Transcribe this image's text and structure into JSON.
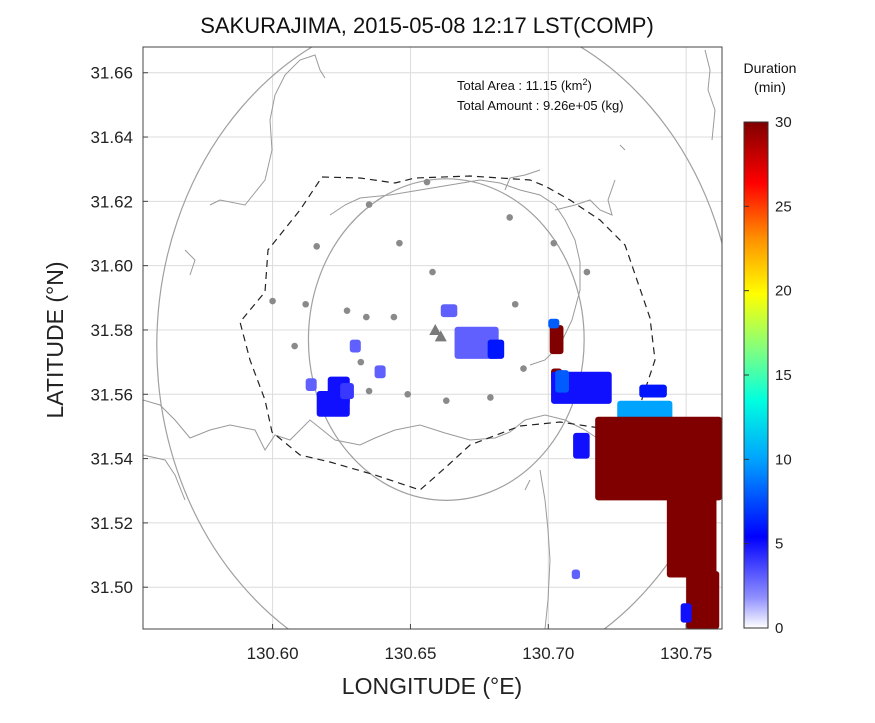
{
  "chart_data": {
    "type": "heatmap",
    "title": "SAKURAJIMA, 2015-05-08 12:17 LST(COMP)",
    "xlabel": "LONGITUDE (°E)",
    "ylabel": "LATITUDE (°N)",
    "xlim": [
      130.553,
      130.763
    ],
    "ylim": [
      31.487,
      31.668
    ],
    "xticks": [
      "130.60",
      "130.65",
      "130.70",
      "130.75"
    ],
    "yticks": [
      "31.50",
      "31.52",
      "31.54",
      "31.56",
      "31.58",
      "31.60",
      "31.62",
      "31.64",
      "31.66"
    ],
    "grid": true,
    "annotations": {
      "area_label": "Total Area   : 11.15 (km",
      "area_sup": "2",
      "area_close": ")",
      "amount_label": "Total Amount : 9.26e+05 (kg)"
    },
    "colorbar": {
      "title_line1": "Duration",
      "title_line2": "(min)",
      "min": 0,
      "max": 30,
      "ticks": [
        "0",
        "5",
        "10",
        "15",
        "20",
        "25",
        "30"
      ]
    },
    "vent": {
      "lon": 130.659,
      "lat": 31.58
    },
    "vent2": {
      "lon": 130.661,
      "lat": 31.578
    },
    "rings": [
      {
        "center_lon": 130.663,
        "center_lat": 31.575,
        "radius_deg": 0.105
      },
      {
        "center_lon": 130.663,
        "center_lat": 31.577,
        "radius_deg": 0.05
      }
    ],
    "stations": [
      [
        130.635,
        31.619
      ],
      [
        130.656,
        31.626
      ],
      [
        130.686,
        31.615
      ],
      [
        130.702,
        31.607
      ],
      [
        130.714,
        31.598
      ],
      [
        130.646,
        31.607
      ],
      [
        130.658,
        31.598
      ],
      [
        130.616,
        31.606
      ],
      [
        130.6,
        31.589
      ],
      [
        130.612,
        31.588
      ],
      [
        130.627,
        31.586
      ],
      [
        130.634,
        31.584
      ],
      [
        130.644,
        31.584
      ],
      [
        130.688,
        31.588
      ],
      [
        130.608,
        31.575
      ],
      [
        130.632,
        31.57
      ],
      [
        130.635,
        31.561
      ],
      [
        130.649,
        31.56
      ],
      [
        130.663,
        31.558
      ],
      [
        130.679,
        31.559
      ],
      [
        130.677,
        31.575
      ],
      [
        130.691,
        31.568
      ]
    ],
    "duration_cells": [
      {
        "lon": 130.624,
        "lat": 31.561,
        "w": 0.008,
        "h": 0.009,
        "v": 5
      },
      {
        "lon": 130.622,
        "lat": 31.557,
        "w": 0.012,
        "h": 0.008,
        "v": 5
      },
      {
        "lon": 130.627,
        "lat": 31.561,
        "w": 0.005,
        "h": 0.005,
        "v": 4
      },
      {
        "lon": 130.614,
        "lat": 31.563,
        "w": 0.004,
        "h": 0.004,
        "v": 3
      },
      {
        "lon": 130.63,
        "lat": 31.575,
        "w": 0.004,
        "h": 0.004,
        "v": 3
      },
      {
        "lon": 130.639,
        "lat": 31.567,
        "w": 0.004,
        "h": 0.004,
        "v": 3
      },
      {
        "lon": 130.664,
        "lat": 31.586,
        "w": 0.006,
        "h": 0.004,
        "v": 3
      },
      {
        "lon": 130.674,
        "lat": 31.576,
        "w": 0.016,
        "h": 0.01,
        "v": 3
      },
      {
        "lon": 130.681,
        "lat": 31.574,
        "w": 0.006,
        "h": 0.006,
        "v": 6
      },
      {
        "lon": 130.703,
        "lat": 31.577,
        "w": 0.005,
        "h": 0.009,
        "v": 30
      },
      {
        "lon": 130.702,
        "lat": 31.582,
        "w": 0.004,
        "h": 0.003,
        "v": 8
      },
      {
        "lon": 130.703,
        "lat": 31.566,
        "w": 0.004,
        "h": 0.004,
        "v": 30
      },
      {
        "lon": 130.712,
        "lat": 31.562,
        "w": 0.022,
        "h": 0.01,
        "v": 5
      },
      {
        "lon": 130.705,
        "lat": 31.564,
        "w": 0.005,
        "h": 0.007,
        "v": 8
      },
      {
        "lon": 130.735,
        "lat": 31.555,
        "w": 0.02,
        "h": 0.006,
        "v": 10
      },
      {
        "lon": 130.738,
        "lat": 31.561,
        "w": 0.01,
        "h": 0.004,
        "v": 6
      },
      {
        "lon": 130.712,
        "lat": 31.544,
        "w": 0.006,
        "h": 0.008,
        "v": 5
      },
      {
        "lon": 130.74,
        "lat": 31.54,
        "w": 0.046,
        "h": 0.026,
        "v": 30
      },
      {
        "lon": 130.752,
        "lat": 31.516,
        "w": 0.018,
        "h": 0.026,
        "v": 30
      },
      {
        "lon": 130.756,
        "lat": 31.496,
        "w": 0.012,
        "h": 0.018,
        "v": 30
      },
      {
        "lon": 130.75,
        "lat": 31.492,
        "w": 0.004,
        "h": 0.006,
        "v": 5
      },
      {
        "lon": 130.71,
        "lat": 31.504,
        "w": 0.003,
        "h": 0.003,
        "v": 3
      }
    ]
  }
}
